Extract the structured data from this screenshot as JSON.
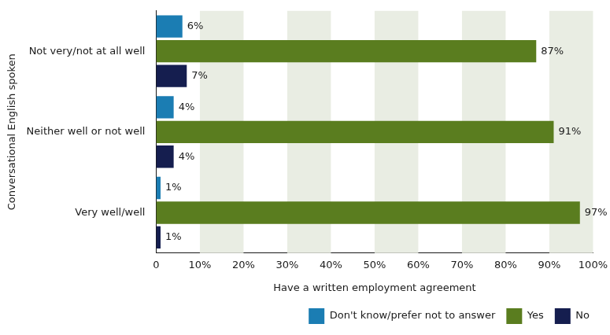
{
  "chart_data": {
    "type": "bar",
    "orientation": "horizontal",
    "x_label": "Have a written employment agreement",
    "y_label": "Conversational English spoken",
    "categories": [
      "Not very/not at all well",
      "Neither well or not well",
      "Very well/well"
    ],
    "series": [
      {
        "name": "Don't know/prefer not to answer",
        "color": "#1b7db3",
        "values": [
          6,
          4,
          1
        ],
        "value_labels": [
          "6%",
          "4%",
          "1%"
        ]
      },
      {
        "name": "Yes",
        "color": "#5a7d1f",
        "values": [
          87,
          91,
          97
        ],
        "value_labels": [
          "87%",
          "91%",
          "97%"
        ]
      },
      {
        "name": "No",
        "color": "#151e4f",
        "values": [
          7,
          4,
          1
        ],
        "value_labels": [
          "7%",
          "4%",
          "1%"
        ]
      }
    ],
    "xlim": [
      0,
      100
    ],
    "xticks": [
      0,
      {
        "value": 10,
        "label": "10%"
      },
      {
        "value": 20,
        "label": "20%"
      },
      {
        "value": 30,
        "label": "30%"
      },
      {
        "value": 40,
        "label": "40%"
      },
      {
        "value": 50,
        "label": "50%"
      },
      {
        "value": 60,
        "label": "60%"
      },
      {
        "value": 70,
        "label": "70%"
      },
      {
        "value": 80,
        "label": "80%"
      },
      {
        "value": 90,
        "label": "90%"
      },
      {
        "value": 100,
        "label": "100%"
      }
    ],
    "grid": true,
    "data_labels": true,
    "legend": "bottom-right"
  }
}
